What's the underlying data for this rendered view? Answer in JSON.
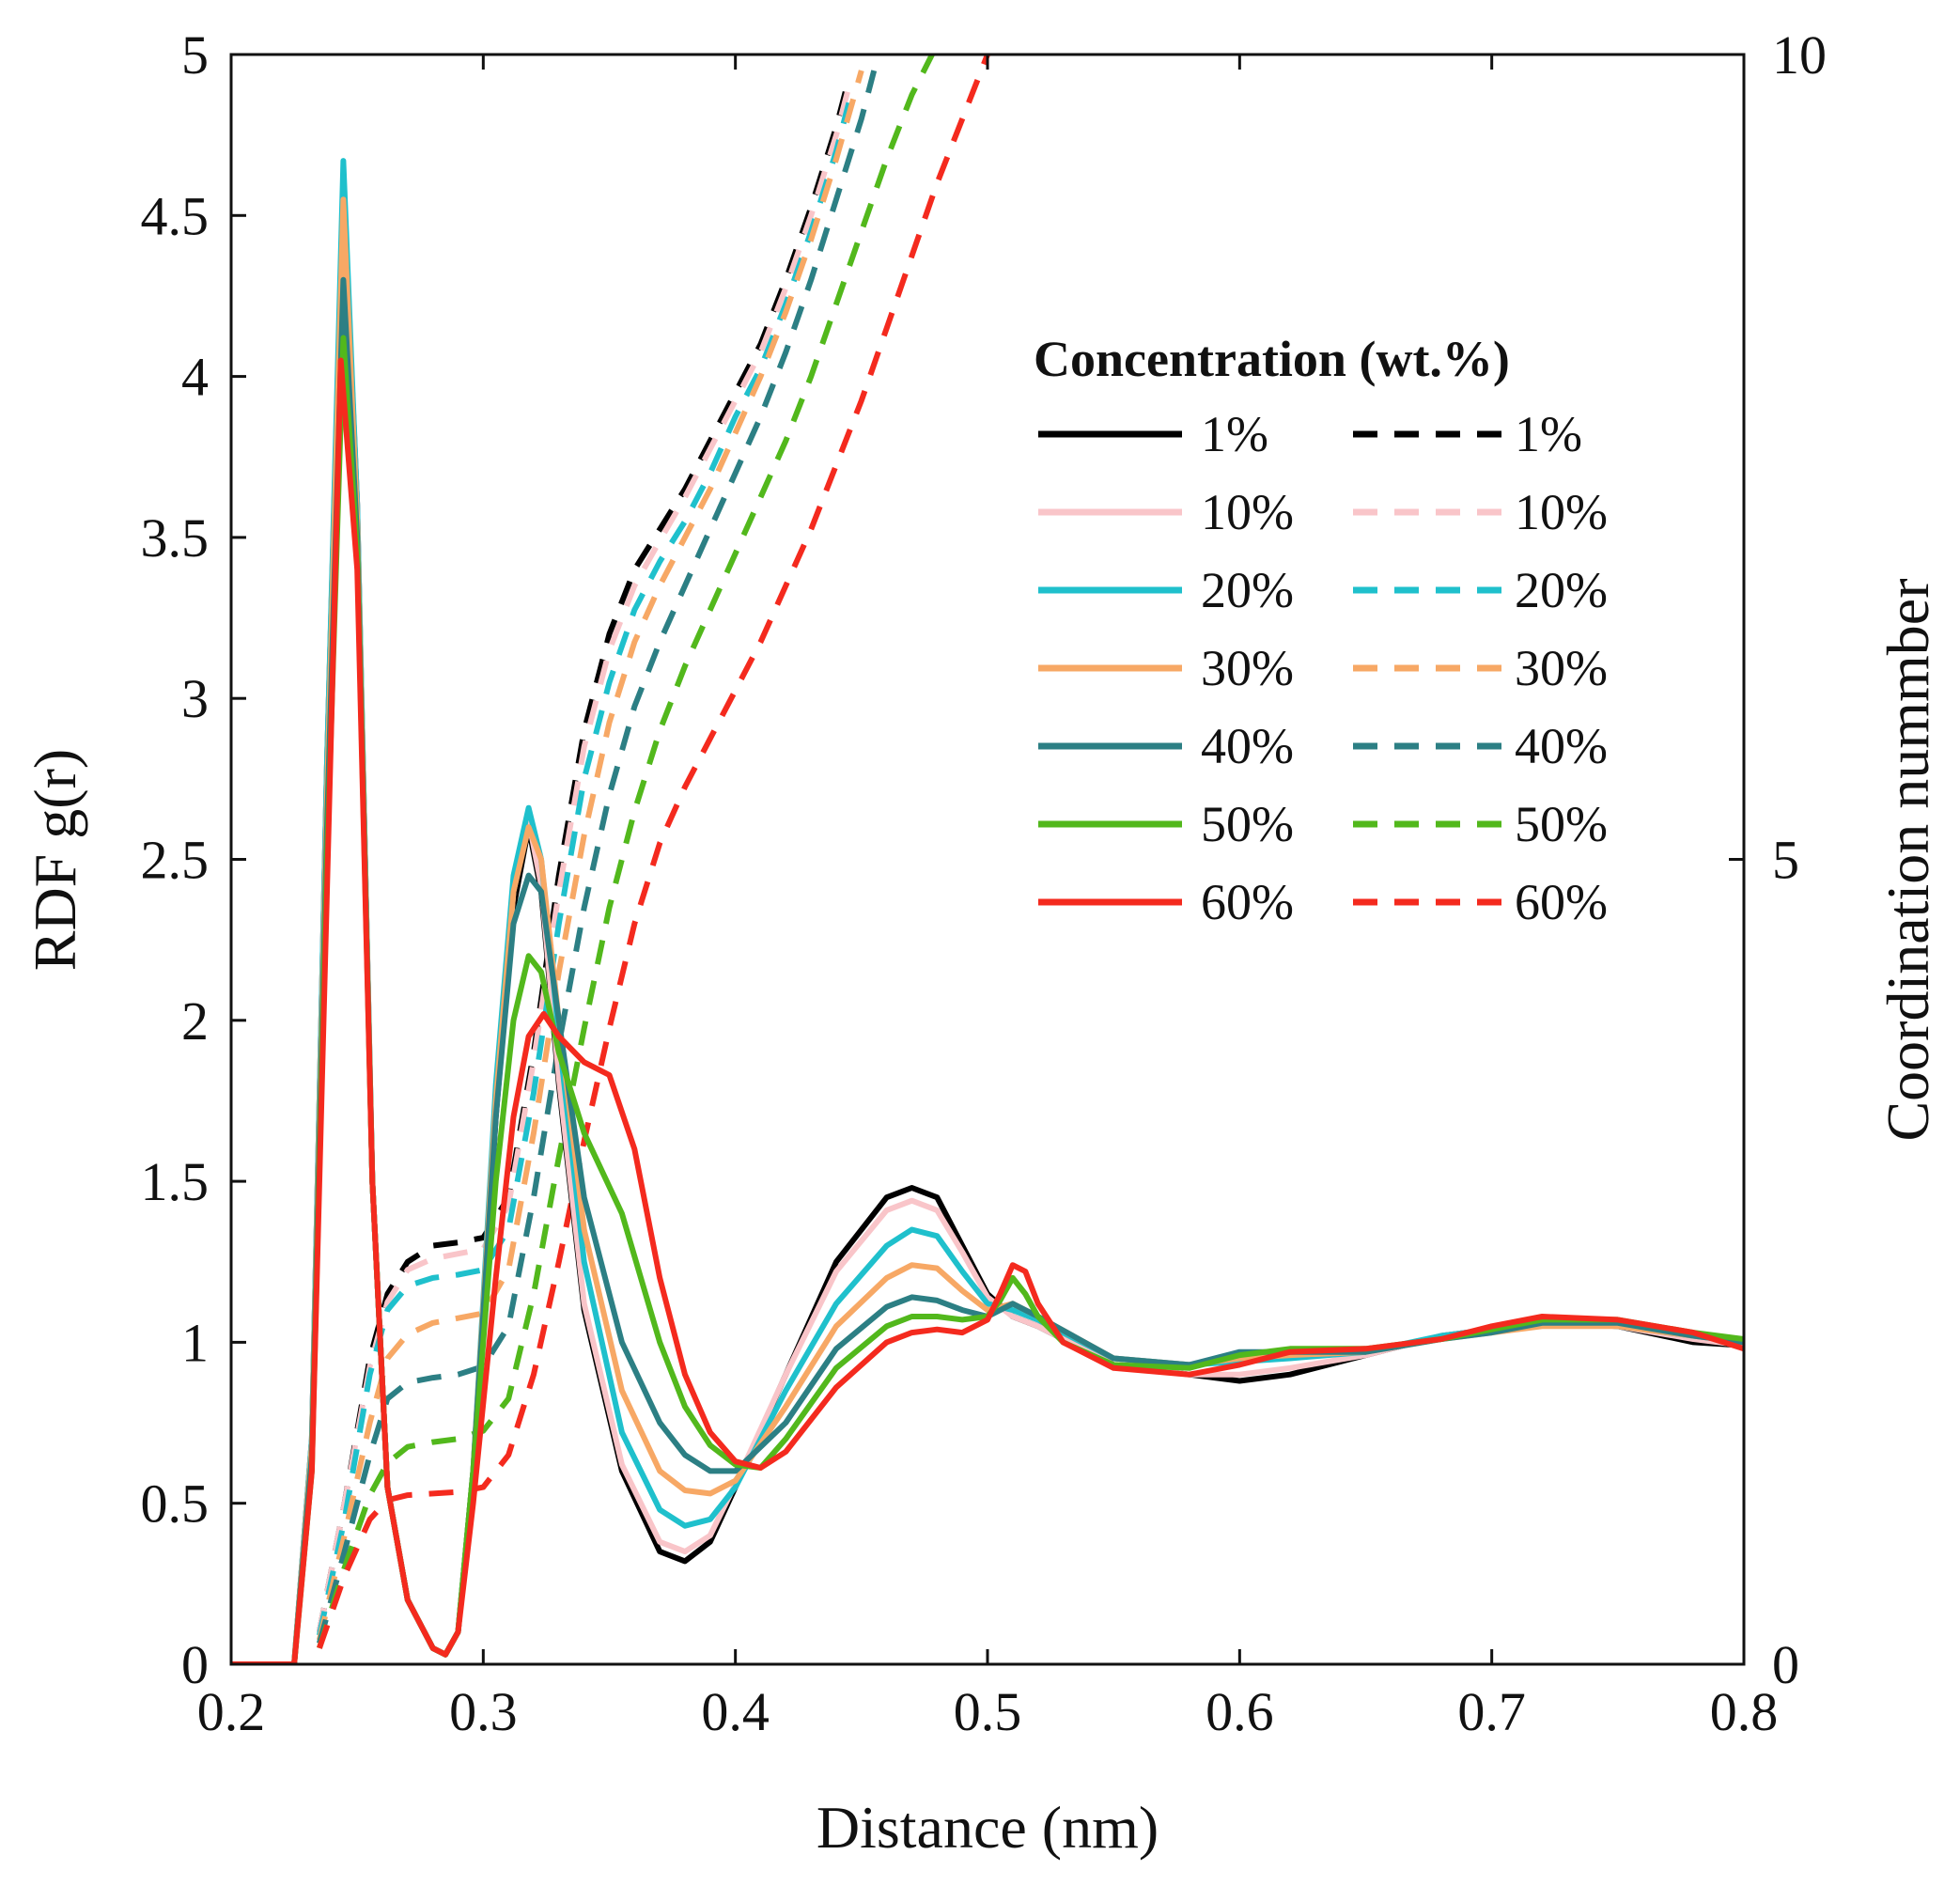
{
  "chart_data": {
    "type": "line",
    "title": "",
    "xlabel": "Distance (nm)",
    "ylabel": "RDF g(r)",
    "y2label": "Coordination nummber",
    "xlim": [
      0.2,
      0.8
    ],
    "ylim": [
      0,
      5
    ],
    "y2lim": [
      0,
      10
    ],
    "xticks": [
      "0.2",
      "0.3",
      "0.4",
      "0.5",
      "0.6",
      "0.7",
      "0.8"
    ],
    "yticks": [
      "0",
      "0.5",
      "1",
      "1.5",
      "2",
      "2.5",
      "3",
      "3.5",
      "4",
      "4.5",
      "5"
    ],
    "y2ticks": [
      "0",
      "5",
      "10"
    ],
    "grid": false,
    "legend": {
      "title": "Concentration (wt.%)",
      "placement": "top-right",
      "solid_labels": [
        "1%",
        "10%",
        "20%",
        "30%",
        "40%",
        "50%",
        "60%"
      ],
      "dashed_labels": [
        "1%",
        "10%",
        "20%",
        "30%",
        "40%",
        "50%",
        "60%"
      ]
    },
    "colors": {
      "1%": "#000000",
      "10%": "#f9c5c9",
      "20%": "#1fc0cc",
      "30%": "#f7a865",
      "40%": "#2c7f84",
      "50%": "#52b81c",
      "60%": "#f42a1e"
    },
    "rdf_series": [
      {
        "name": "1%",
        "axis": "left",
        "style": "solid",
        "x": [
          0.2,
          0.225,
          0.232,
          0.238,
          0.2445,
          0.25,
          0.256,
          0.262,
          0.27,
          0.28,
          0.285,
          0.29,
          0.296,
          0.305,
          0.312,
          0.318,
          0.323,
          0.33,
          0.34,
          0.355,
          0.37,
          0.38,
          0.39,
          0.4,
          0.42,
          0.44,
          0.46,
          0.47,
          0.48,
          0.49,
          0.5,
          0.51,
          0.52,
          0.55,
          0.58,
          0.6,
          0.62,
          0.65,
          0.68,
          0.7,
          0.72,
          0.75,
          0.78,
          0.8
        ],
        "values": [
          0,
          0,
          0.7,
          2.8,
          4.6,
          3.6,
          1.5,
          0.55,
          0.2,
          0.05,
          0.03,
          0.1,
          0.6,
          1.7,
          2.35,
          2.6,
          2.4,
          1.8,
          1.1,
          0.6,
          0.35,
          0.32,
          0.38,
          0.55,
          0.9,
          1.25,
          1.45,
          1.48,
          1.45,
          1.3,
          1.15,
          1.08,
          1.05,
          0.93,
          0.9,
          0.88,
          0.9,
          0.96,
          1.02,
          1.04,
          1.06,
          1.05,
          1.0,
          0.99
        ]
      },
      {
        "name": "10%",
        "axis": "left",
        "style": "solid",
        "x": [
          0.2,
          0.225,
          0.232,
          0.238,
          0.2445,
          0.25,
          0.256,
          0.262,
          0.27,
          0.28,
          0.285,
          0.29,
          0.296,
          0.305,
          0.312,
          0.318,
          0.323,
          0.33,
          0.34,
          0.355,
          0.37,
          0.38,
          0.39,
          0.4,
          0.42,
          0.44,
          0.46,
          0.47,
          0.48,
          0.49,
          0.5,
          0.51,
          0.52,
          0.55,
          0.58,
          0.6,
          0.62,
          0.65,
          0.68,
          0.7,
          0.72,
          0.75,
          0.78,
          0.8
        ],
        "values": [
          0,
          0,
          0.7,
          2.8,
          4.62,
          3.6,
          1.5,
          0.55,
          0.2,
          0.05,
          0.03,
          0.1,
          0.6,
          1.75,
          2.4,
          2.62,
          2.42,
          1.82,
          1.12,
          0.62,
          0.38,
          0.35,
          0.4,
          0.56,
          0.9,
          1.22,
          1.41,
          1.44,
          1.41,
          1.28,
          1.14,
          1.08,
          1.05,
          0.93,
          0.9,
          0.9,
          0.92,
          0.96,
          1.02,
          1.04,
          1.06,
          1.05,
          1.01,
          0.99
        ]
      },
      {
        "name": "20%",
        "axis": "left",
        "style": "solid",
        "x": [
          0.2,
          0.225,
          0.232,
          0.238,
          0.2445,
          0.25,
          0.256,
          0.262,
          0.27,
          0.28,
          0.285,
          0.29,
          0.296,
          0.305,
          0.312,
          0.318,
          0.323,
          0.33,
          0.34,
          0.355,
          0.37,
          0.38,
          0.39,
          0.4,
          0.42,
          0.44,
          0.46,
          0.47,
          0.48,
          0.49,
          0.5,
          0.51,
          0.52,
          0.55,
          0.58,
          0.6,
          0.62,
          0.65,
          0.68,
          0.7,
          0.72,
          0.75,
          0.78,
          0.8
        ],
        "values": [
          0,
          0,
          0.7,
          2.8,
          4.67,
          3.6,
          1.5,
          0.55,
          0.2,
          0.05,
          0.03,
          0.1,
          0.6,
          1.8,
          2.45,
          2.66,
          2.5,
          1.95,
          1.25,
          0.72,
          0.48,
          0.43,
          0.45,
          0.55,
          0.85,
          1.12,
          1.3,
          1.35,
          1.33,
          1.22,
          1.12,
          1.1,
          1.07,
          0.95,
          0.93,
          0.94,
          0.95,
          0.97,
          1.02,
          1.04,
          1.06,
          1.05,
          1.02,
          1.0
        ]
      },
      {
        "name": "30%",
        "axis": "left",
        "style": "solid",
        "x": [
          0.2,
          0.225,
          0.232,
          0.238,
          0.2445,
          0.25,
          0.256,
          0.262,
          0.27,
          0.28,
          0.285,
          0.29,
          0.296,
          0.305,
          0.312,
          0.318,
          0.323,
          0.33,
          0.34,
          0.355,
          0.37,
          0.38,
          0.39,
          0.4,
          0.42,
          0.44,
          0.46,
          0.47,
          0.48,
          0.49,
          0.5,
          0.51,
          0.52,
          0.55,
          0.58,
          0.6,
          0.62,
          0.65,
          0.68,
          0.7,
          0.72,
          0.75,
          0.78,
          0.8
        ],
        "values": [
          0,
          0,
          0.68,
          2.7,
          4.55,
          3.55,
          1.5,
          0.55,
          0.2,
          0.05,
          0.03,
          0.1,
          0.6,
          1.75,
          2.4,
          2.6,
          2.5,
          2.0,
          1.35,
          0.85,
          0.6,
          0.54,
          0.53,
          0.57,
          0.8,
          1.05,
          1.2,
          1.24,
          1.23,
          1.16,
          1.1,
          1.12,
          1.08,
          0.95,
          0.93,
          0.95,
          0.96,
          0.97,
          1.01,
          1.03,
          1.05,
          1.05,
          1.02,
          1.0
        ]
      },
      {
        "name": "40%",
        "axis": "left",
        "style": "solid",
        "x": [
          0.2,
          0.225,
          0.232,
          0.238,
          0.2445,
          0.25,
          0.256,
          0.262,
          0.27,
          0.28,
          0.285,
          0.29,
          0.296,
          0.305,
          0.312,
          0.318,
          0.323,
          0.33,
          0.34,
          0.355,
          0.37,
          0.38,
          0.39,
          0.4,
          0.42,
          0.44,
          0.46,
          0.47,
          0.48,
          0.49,
          0.5,
          0.51,
          0.52,
          0.55,
          0.58,
          0.6,
          0.62,
          0.65,
          0.68,
          0.7,
          0.72,
          0.75,
          0.78,
          0.8
        ],
        "values": [
          0,
          0,
          0.65,
          2.6,
          4.3,
          3.5,
          1.5,
          0.55,
          0.2,
          0.05,
          0.03,
          0.1,
          0.6,
          1.7,
          2.3,
          2.45,
          2.4,
          2.0,
          1.45,
          1.0,
          0.75,
          0.65,
          0.6,
          0.6,
          0.75,
          0.98,
          1.11,
          1.14,
          1.13,
          1.1,
          1.08,
          1.12,
          1.08,
          0.95,
          0.93,
          0.97,
          0.97,
          0.97,
          1.01,
          1.03,
          1.06,
          1.06,
          1.02,
          1.0
        ]
      },
      {
        "name": "50%",
        "axis": "left",
        "style": "solid",
        "x": [
          0.2,
          0.225,
          0.232,
          0.238,
          0.2445,
          0.25,
          0.256,
          0.262,
          0.27,
          0.28,
          0.285,
          0.29,
          0.296,
          0.305,
          0.312,
          0.318,
          0.323,
          0.33,
          0.34,
          0.355,
          0.37,
          0.38,
          0.39,
          0.4,
          0.41,
          0.42,
          0.44,
          0.46,
          0.47,
          0.48,
          0.49,
          0.5,
          0.505,
          0.51,
          0.515,
          0.52,
          0.53,
          0.55,
          0.58,
          0.6,
          0.62,
          0.65,
          0.68,
          0.7,
          0.72,
          0.75,
          0.78,
          0.8
        ],
        "values": [
          0,
          0,
          0.6,
          2.5,
          4.12,
          3.45,
          1.5,
          0.55,
          0.2,
          0.05,
          0.03,
          0.1,
          0.6,
          1.5,
          2.0,
          2.2,
          2.15,
          1.9,
          1.65,
          1.4,
          1.0,
          0.8,
          0.68,
          0.62,
          0.61,
          0.7,
          0.92,
          1.05,
          1.08,
          1.08,
          1.07,
          1.08,
          1.13,
          1.2,
          1.15,
          1.08,
          1.0,
          0.93,
          0.92,
          0.96,
          0.98,
          0.98,
          1.01,
          1.04,
          1.07,
          1.07,
          1.03,
          1.01
        ]
      },
      {
        "name": "60%",
        "axis": "left",
        "style": "solid",
        "x": [
          0.2,
          0.225,
          0.232,
          0.238,
          0.2435,
          0.25,
          0.256,
          0.262,
          0.27,
          0.28,
          0.285,
          0.29,
          0.296,
          0.305,
          0.312,
          0.318,
          0.324,
          0.33,
          0.34,
          0.35,
          0.36,
          0.37,
          0.38,
          0.39,
          0.4,
          0.41,
          0.42,
          0.44,
          0.46,
          0.47,
          0.48,
          0.49,
          0.5,
          0.505,
          0.51,
          0.515,
          0.52,
          0.53,
          0.55,
          0.58,
          0.6,
          0.62,
          0.65,
          0.68,
          0.7,
          0.72,
          0.75,
          0.78,
          0.8
        ],
        "values": [
          0,
          0,
          0.6,
          2.4,
          4.05,
          3.4,
          1.5,
          0.55,
          0.2,
          0.05,
          0.03,
          0.1,
          0.5,
          1.2,
          1.7,
          1.95,
          2.02,
          1.95,
          1.87,
          1.83,
          1.6,
          1.2,
          0.9,
          0.72,
          0.63,
          0.61,
          0.66,
          0.86,
          1.0,
          1.03,
          1.04,
          1.03,
          1.07,
          1.15,
          1.24,
          1.22,
          1.12,
          1.0,
          0.92,
          0.9,
          0.93,
          0.97,
          0.98,
          1.01,
          1.05,
          1.08,
          1.07,
          1.03,
          0.98
        ]
      }
    ],
    "cn_series": [
      {
        "name": "1%",
        "axis": "right",
        "style": "dashed",
        "x": [
          0.235,
          0.245,
          0.255,
          0.262,
          0.27,
          0.28,
          0.29,
          0.3,
          0.31,
          0.32,
          0.33,
          0.34,
          0.35,
          0.36,
          0.37,
          0.38,
          0.39,
          0.4,
          0.41,
          0.42,
          0.43,
          0.44,
          0.445
        ],
        "values": [
          0.2,
          1.0,
          1.9,
          2.3,
          2.5,
          2.6,
          2.62,
          2.65,
          2.9,
          3.8,
          4.9,
          5.8,
          6.4,
          6.8,
          7.05,
          7.3,
          7.6,
          7.9,
          8.2,
          8.6,
          9.05,
          9.55,
          9.85
        ]
      },
      {
        "name": "10%",
        "axis": "right",
        "style": "dashed",
        "x": [
          0.235,
          0.245,
          0.255,
          0.262,
          0.27,
          0.28,
          0.29,
          0.3,
          0.31,
          0.32,
          0.33,
          0.34,
          0.35,
          0.36,
          0.37,
          0.38,
          0.39,
          0.4,
          0.41,
          0.42,
          0.43,
          0.44,
          0.445
        ],
        "values": [
          0.2,
          1.0,
          1.85,
          2.25,
          2.45,
          2.52,
          2.55,
          2.58,
          2.85,
          3.75,
          4.8,
          5.7,
          6.3,
          6.7,
          6.98,
          7.25,
          7.55,
          7.85,
          8.15,
          8.55,
          9.0,
          9.5,
          9.8
        ]
      },
      {
        "name": "20%",
        "axis": "right",
        "style": "dashed",
        "x": [
          0.235,
          0.245,
          0.255,
          0.262,
          0.27,
          0.28,
          0.29,
          0.3,
          0.31,
          0.32,
          0.33,
          0.34,
          0.35,
          0.36,
          0.37,
          0.38,
          0.39,
          0.4,
          0.41,
          0.42,
          0.43,
          0.44,
          0.445
        ],
        "values": [
          0.18,
          0.9,
          1.8,
          2.2,
          2.35,
          2.4,
          2.42,
          2.45,
          2.7,
          3.55,
          4.6,
          5.5,
          6.1,
          6.55,
          6.85,
          7.1,
          7.4,
          7.75,
          8.05,
          8.45,
          8.9,
          9.4,
          9.7
        ]
      },
      {
        "name": "30%",
        "axis": "right",
        "style": "dashed",
        "x": [
          0.235,
          0.245,
          0.255,
          0.262,
          0.27,
          0.28,
          0.29,
          0.3,
          0.31,
          0.32,
          0.33,
          0.34,
          0.35,
          0.36,
          0.37,
          0.38,
          0.39,
          0.4,
          0.41,
          0.42,
          0.43,
          0.44,
          0.45
        ],
        "values": [
          0.15,
          0.8,
          1.5,
          1.9,
          2.05,
          2.12,
          2.15,
          2.18,
          2.45,
          3.3,
          4.3,
          5.15,
          5.85,
          6.35,
          6.7,
          7.0,
          7.3,
          7.65,
          8.0,
          8.4,
          8.85,
          9.35,
          9.9
        ]
      },
      {
        "name": "40%",
        "axis": "right",
        "style": "dashed",
        "x": [
          0.235,
          0.245,
          0.255,
          0.262,
          0.27,
          0.28,
          0.29,
          0.3,
          0.31,
          0.32,
          0.33,
          0.34,
          0.35,
          0.36,
          0.37,
          0.38,
          0.39,
          0.4,
          0.41,
          0.42,
          0.43,
          0.44,
          0.45,
          0.455
        ],
        "values": [
          0.13,
          0.7,
          1.3,
          1.65,
          1.75,
          1.78,
          1.8,
          1.85,
          2.1,
          2.9,
          3.85,
          4.7,
          5.4,
          5.95,
          6.35,
          6.7,
          7.05,
          7.4,
          7.75,
          8.15,
          8.6,
          9.1,
          9.6,
          9.9
        ]
      },
      {
        "name": "50%",
        "axis": "right",
        "style": "dashed",
        "x": [
          0.235,
          0.245,
          0.255,
          0.262,
          0.27,
          0.28,
          0.29,
          0.3,
          0.31,
          0.32,
          0.33,
          0.34,
          0.35,
          0.36,
          0.37,
          0.38,
          0.39,
          0.4,
          0.41,
          0.42,
          0.43,
          0.44,
          0.45,
          0.46,
          0.47,
          0.478
        ],
        "values": [
          0.1,
          0.6,
          1.05,
          1.25,
          1.35,
          1.38,
          1.4,
          1.45,
          1.65,
          2.3,
          3.15,
          3.95,
          4.7,
          5.3,
          5.8,
          6.2,
          6.55,
          6.9,
          7.25,
          7.6,
          8.0,
          8.45,
          8.9,
          9.35,
          9.75,
          10.0
        ]
      },
      {
        "name": "60%",
        "axis": "right",
        "style": "dashed",
        "x": [
          0.235,
          0.245,
          0.255,
          0.262,
          0.27,
          0.28,
          0.29,
          0.3,
          0.31,
          0.32,
          0.33,
          0.34,
          0.35,
          0.36,
          0.37,
          0.38,
          0.39,
          0.4,
          0.41,
          0.42,
          0.43,
          0.44,
          0.45,
          0.46,
          0.47,
          0.48,
          0.49,
          0.5
        ],
        "values": [
          0.1,
          0.55,
          0.9,
          1.02,
          1.05,
          1.06,
          1.07,
          1.1,
          1.3,
          1.8,
          2.5,
          3.25,
          3.95,
          4.6,
          5.1,
          5.45,
          5.75,
          6.05,
          6.35,
          6.7,
          7.05,
          7.45,
          7.85,
          8.3,
          8.75,
          9.2,
          9.6,
          10.0
        ]
      }
    ]
  }
}
